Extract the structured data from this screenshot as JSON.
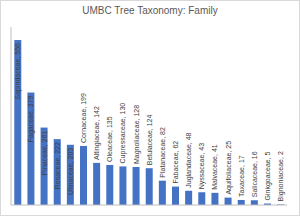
{
  "chart_data": {
    "type": "bar",
    "title": "UMBC Tree Taxonomy: Family",
    "categories": [
      "Sapindaceae",
      "Fagaceae",
      "Pinaceae",
      "Rosaceae",
      "Ulmaceae",
      "Cornaceae",
      "Altingiaceae",
      "Oleaceae",
      "Cupressaceae",
      "Magnoliaceae",
      "Betulaceae",
      "Platanaceae",
      "Fabaceae",
      "Juglandaceae",
      "Nyssaceae",
      "Malvaceae",
      "Aquifoliaceae",
      "Taxaceae",
      "Salicaceae",
      "Ginkgoaceae",
      "Bignoniaceae"
    ],
    "values": [
      556,
      379,
      261,
      222,
      203,
      199,
      142,
      135,
      130,
      128,
      124,
      82,
      62,
      48,
      43,
      41,
      25,
      17,
      16,
      5,
      2
    ],
    "value_labels": [
      "Sapindaceae, 556",
      "Fagaceae, 379",
      "Pinaceae, 261",
      "Rosaceae, 222",
      "Ulmaceae, 203",
      "Cornaceae, 199",
      "Altingiaceae, 142",
      "Oleaceae, 135",
      "Cupressaceae, 130",
      "Magnoliaceae, 128",
      "Betulaceae, 124",
      "Platanaceae, 82",
      "Fabaceae, 62",
      "Juglandaceae, 48",
      "Nyssaceae, 43",
      "Malvaceae, 41",
      "Aquifoliaceae, 25",
      "Taxaceae, 17",
      "Salicaceae, 16",
      "Ginkgoaceae, 5",
      "Bignoniaceae, 2"
    ],
    "color": "#4472c4",
    "ylim": [
      0,
      600
    ],
    "grid": false,
    "data_labels": true,
    "tick_labels": false
  }
}
